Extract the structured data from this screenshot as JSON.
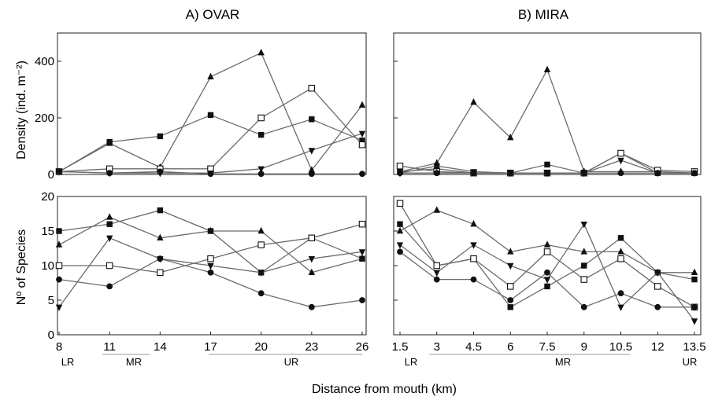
{
  "figure": {
    "panel_titles": [
      "A) OVAR",
      "B) MIRA"
    ],
    "density_ylabel": "Density (ind. m⁻²)",
    "species_ylabel": "Nº of Species",
    "xlabel": "Distance from mouth (km)",
    "zones_a": [
      "LR",
      "MR",
      "UR"
    ],
    "zones_b": [
      "LR",
      "MR",
      "UR"
    ]
  },
  "colors": {
    "line": "#6b6b6b",
    "axis": "#222222",
    "marker": "#111111"
  },
  "chart_data": [
    {
      "id": "ovar-density",
      "type": "line",
      "x": [
        8,
        11,
        14,
        17,
        20,
        23,
        26
      ],
      "xlim": [
        8,
        26
      ],
      "ylim": [
        0,
        500
      ],
      "yticks": [
        0,
        200,
        400
      ],
      "ytick_labels": [
        "0",
        "200",
        "400"
      ],
      "series": [
        {
          "marker": "triangle-up",
          "values": [
            10,
            110,
            25,
            345,
            430,
            15,
            245
          ]
        },
        {
          "marker": "square-filled",
          "values": [
            10,
            115,
            135,
            210,
            140,
            195,
            120
          ]
        },
        {
          "marker": "square-open",
          "values": [
            10,
            20,
            20,
            20,
            200,
            305,
            105
          ]
        },
        {
          "marker": "triangle-down",
          "values": [
            10,
            5,
            5,
            5,
            20,
            85,
            145
          ]
        },
        {
          "marker": "circle-filled",
          "values": [
            10,
            5,
            10,
            2,
            2,
            2,
            2
          ]
        }
      ]
    },
    {
      "id": "mira-density",
      "type": "line",
      "x": [
        1.5,
        3,
        4.5,
        6,
        7.5,
        9,
        10.5,
        12,
        13.5
      ],
      "xlim": [
        1.5,
        13.5
      ],
      "ylim": [
        0,
        500
      ],
      "yticks": [
        0,
        200,
        400
      ],
      "ytick_labels": [
        "",
        "",
        ""
      ],
      "series": [
        {
          "marker": "triangle-up",
          "values": [
            10,
            40,
            255,
            130,
            370,
            10,
            10,
            10,
            5
          ]
        },
        {
          "marker": "square-filled",
          "values": [
            10,
            20,
            5,
            5,
            35,
            5,
            75,
            5,
            5
          ]
        },
        {
          "marker": "square-open",
          "values": [
            30,
            10,
            5,
            5,
            5,
            5,
            75,
            15,
            10
          ]
        },
        {
          "marker": "triangle-down",
          "values": [
            5,
            30,
            10,
            5,
            5,
            5,
            50,
            5,
            5
          ]
        },
        {
          "marker": "circle-filled",
          "values": [
            5,
            5,
            5,
            5,
            5,
            5,
            5,
            5,
            5
          ]
        }
      ]
    },
    {
      "id": "ovar-species",
      "type": "line",
      "x": [
        8,
        11,
        14,
        17,
        20,
        23,
        26
      ],
      "xlim": [
        8,
        26
      ],
      "ylim": [
        0,
        20
      ],
      "yticks": [
        0,
        5,
        10,
        15,
        20
      ],
      "ytick_labels": [
        "0",
        "5",
        "10",
        "15",
        "20"
      ],
      "xtick_labels": [
        "8",
        "11",
        "14",
        "17",
        "20",
        "23",
        "26"
      ],
      "series": [
        {
          "marker": "triangle-up",
          "values": [
            13,
            17,
            14,
            15,
            15,
            9,
            11
          ]
        },
        {
          "marker": "square-filled",
          "values": [
            15,
            16,
            18,
            15,
            9,
            14,
            11
          ]
        },
        {
          "marker": "square-open",
          "values": [
            10,
            10,
            9,
            11,
            13,
            14,
            16
          ]
        },
        {
          "marker": "triangle-down",
          "values": [
            4,
            14,
            11,
            10,
            9,
            11,
            12
          ]
        },
        {
          "marker": "circle-filled",
          "values": [
            8,
            7,
            11,
            9,
            6,
            4,
            5
          ]
        }
      ]
    },
    {
      "id": "mira-species",
      "type": "line",
      "x": [
        1.5,
        3,
        4.5,
        6,
        7.5,
        9,
        10.5,
        12,
        13.5
      ],
      "xlim": [
        1.5,
        13.5
      ],
      "ylim": [
        0,
        20
      ],
      "yticks": [
        0,
        5,
        10,
        15,
        20
      ],
      "ytick_labels": [
        "",
        "",
        "",
        "",
        ""
      ],
      "xtick_labels": [
        "1.5",
        "3",
        "4.5",
        "6",
        "7.5",
        "9",
        "10.5",
        "12",
        "13.5"
      ],
      "series": [
        {
          "marker": "triangle-up",
          "values": [
            15,
            18,
            16,
            12,
            13,
            12,
            12,
            9,
            9
          ]
        },
        {
          "marker": "square-filled",
          "values": [
            16,
            10,
            11,
            4,
            7,
            10,
            14,
            9,
            8
          ]
        },
        {
          "marker": "square-open",
          "values": [
            19,
            10,
            11,
            7,
            12,
            8,
            11,
            7,
            4
          ]
        },
        {
          "marker": "triangle-down",
          "values": [
            13,
            9,
            13,
            10,
            8,
            16,
            4,
            9,
            2
          ]
        },
        {
          "marker": "circle-filled",
          "values": [
            12,
            8,
            8,
            5,
            9,
            4,
            6,
            4,
            4
          ]
        }
      ]
    }
  ]
}
